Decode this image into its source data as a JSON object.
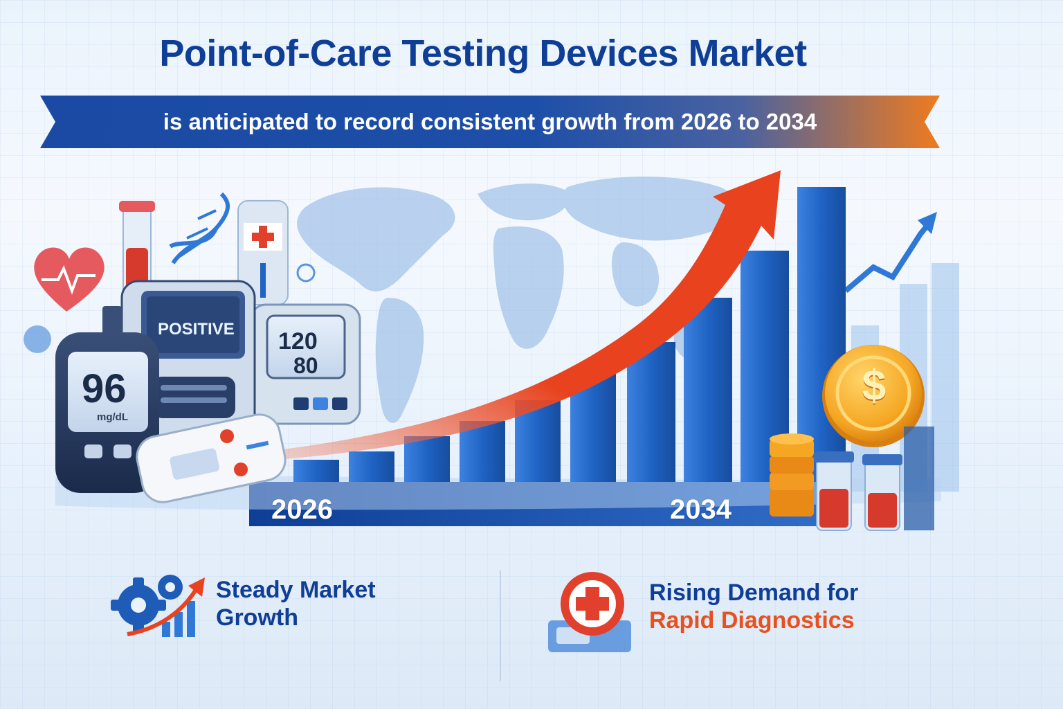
{
  "header": {
    "title": "Point-of-Care Testing Devices Market",
    "subtitle": "is anticipated to record consistent growth from 2026 to 2034"
  },
  "timeline": {
    "start_year": "2026",
    "end_year": "2034"
  },
  "devices": {
    "glucose_reading": "96",
    "glucose_unit": "mg/dL",
    "test_result": "POSITIVE",
    "bp_systolic": "120",
    "bp_diastolic": "80"
  },
  "coin_symbol": "$",
  "features": {
    "left": {
      "line1": "Steady Market",
      "line2": "Growth"
    },
    "right": {
      "line1": "Rising Demand for",
      "line2": "Rapid Diagnostics"
    }
  },
  "colors": {
    "title_blue": "#0f3e96",
    "ribbon_blue": "#1e4fa8",
    "ribbon_orange": "#ee7b1f",
    "arrow_red": "#e8431e",
    "bar_blue": "#1f63c4",
    "coin_gold": "#f5a623"
  },
  "icons": [
    "heart-pulse-icon",
    "dna-icon",
    "blood-tube-icon",
    "first-aid-icon",
    "gear-icon",
    "growth-arrow-icon",
    "dollar-coin-icon",
    "world-map"
  ]
}
